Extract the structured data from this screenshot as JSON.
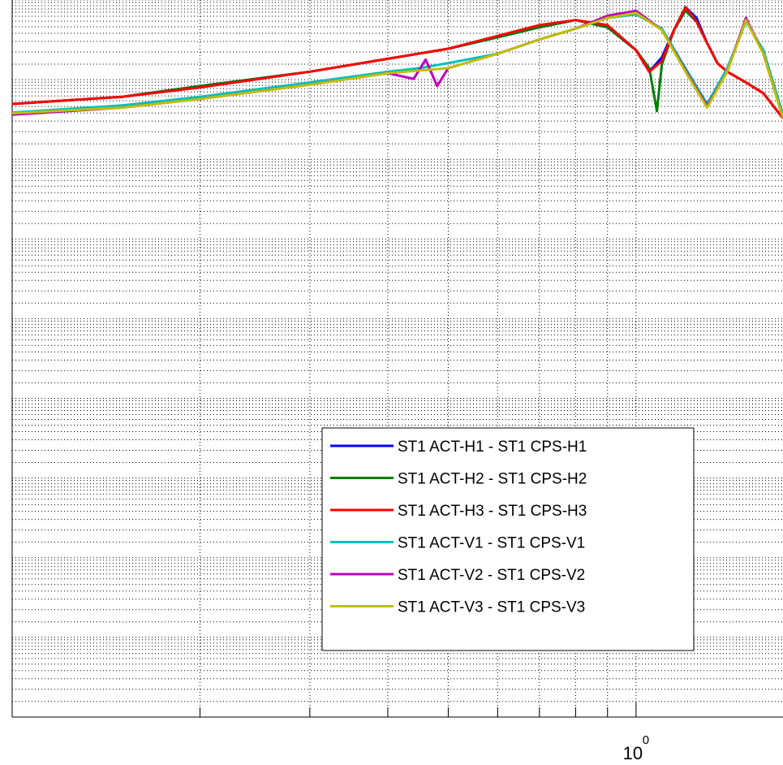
{
  "chart_data": {
    "type": "line",
    "xscale": "log",
    "xlim": [
      0.1,
      1.72
    ],
    "ylim": [
      0,
      1
    ],
    "grid": true,
    "xtick_labels": [
      {
        "x": 1,
        "base": "10",
        "exponent": "0"
      }
    ],
    "legend_position": "lower-right",
    "series": [
      {
        "name": "ST1 ACT-H1 - ST1 CPS-H1",
        "color": "#0000ff",
        "x": [
          0.1,
          0.15,
          0.2,
          0.3,
          0.4,
          0.5,
          0.6,
          0.7,
          0.8,
          0.9,
          1.0,
          1.05,
          1.1,
          1.15,
          1.2,
          1.25,
          1.3,
          1.35,
          1.4,
          1.5,
          1.6,
          1.72
        ],
        "y": [
          0.855,
          0.865,
          0.88,
          0.9,
          0.918,
          0.932,
          0.948,
          0.962,
          0.972,
          0.962,
          0.93,
          0.9,
          0.92,
          0.958,
          0.99,
          0.975,
          0.94,
          0.912,
          0.9,
          0.885,
          0.87,
          0.835
        ]
      },
      {
        "name": "ST1 ACT-H2 - ST1 CPS-H2",
        "color": "#007f00",
        "x": [
          0.1,
          0.15,
          0.2,
          0.3,
          0.4,
          0.5,
          0.6,
          0.7,
          0.8,
          0.9,
          1.0,
          1.05,
          1.08,
          1.1,
          1.15,
          1.2,
          1.25,
          1.3,
          1.35,
          1.4,
          1.5,
          1.6,
          1.72
        ],
        "y": [
          0.855,
          0.865,
          0.88,
          0.9,
          0.918,
          0.932,
          0.948,
          0.962,
          0.972,
          0.962,
          0.93,
          0.905,
          0.845,
          0.91,
          0.958,
          0.985,
          0.97,
          0.94,
          0.912,
          0.9,
          0.885,
          0.87,
          0.835
        ]
      },
      {
        "name": "ST1 ACT-H3 - ST1 CPS-H3",
        "color": "#ff0000",
        "x": [
          0.1,
          0.15,
          0.2,
          0.3,
          0.4,
          0.5,
          0.6,
          0.7,
          0.8,
          0.9,
          1.0,
          1.05,
          1.1,
          1.15,
          1.2,
          1.25,
          1.3,
          1.35,
          1.4,
          1.5,
          1.6,
          1.72
        ],
        "y": [
          0.855,
          0.865,
          0.878,
          0.9,
          0.918,
          0.932,
          0.95,
          0.965,
          0.972,
          0.965,
          0.93,
          0.9,
          0.915,
          0.958,
          0.99,
          0.97,
          0.94,
          0.912,
          0.9,
          0.885,
          0.87,
          0.835
        ]
      },
      {
        "name": "ST1 ACT-V1 - ST1 CPS-V1",
        "color": "#00bfbf",
        "x": [
          0.1,
          0.15,
          0.2,
          0.3,
          0.4,
          0.45,
          0.5,
          0.6,
          0.7,
          0.8,
          0.9,
          1.0,
          1.1,
          1.2,
          1.3,
          1.4,
          1.5,
          1.6,
          1.72
        ],
        "y": [
          0.843,
          0.853,
          0.865,
          0.885,
          0.9,
          0.905,
          0.912,
          0.925,
          0.945,
          0.96,
          0.975,
          0.98,
          0.96,
          0.905,
          0.855,
          0.905,
          0.97,
          0.93,
          0.84
        ]
      },
      {
        "name": "ST1 ACT-V2 - ST1 CPS-V2",
        "color": "#bf00bf",
        "x": [
          0.1,
          0.15,
          0.2,
          0.3,
          0.4,
          0.44,
          0.46,
          0.48,
          0.5,
          0.6,
          0.7,
          0.8,
          0.9,
          1.0,
          1.1,
          1.2,
          1.3,
          1.4,
          1.5,
          1.6,
          1.72
        ],
        "y": [
          0.84,
          0.85,
          0.862,
          0.882,
          0.898,
          0.89,
          0.917,
          0.88,
          0.905,
          0.925,
          0.945,
          0.96,
          0.978,
          0.985,
          0.958,
          0.902,
          0.852,
          0.9,
          0.975,
          0.925,
          0.835
        ]
      },
      {
        "name": "ST1 ACT-V3 - ST1 CPS-V3",
        "color": "#bfbf00",
        "x": [
          0.1,
          0.15,
          0.2,
          0.3,
          0.4,
          0.5,
          0.6,
          0.7,
          0.8,
          0.9,
          1.0,
          1.1,
          1.2,
          1.3,
          1.4,
          1.5,
          1.6,
          1.72
        ],
        "y": [
          0.842,
          0.85,
          0.862,
          0.882,
          0.898,
          0.905,
          0.925,
          0.945,
          0.96,
          0.975,
          0.982,
          0.958,
          0.9,
          0.85,
          0.9,
          0.972,
          0.925,
          0.835
        ]
      }
    ]
  }
}
